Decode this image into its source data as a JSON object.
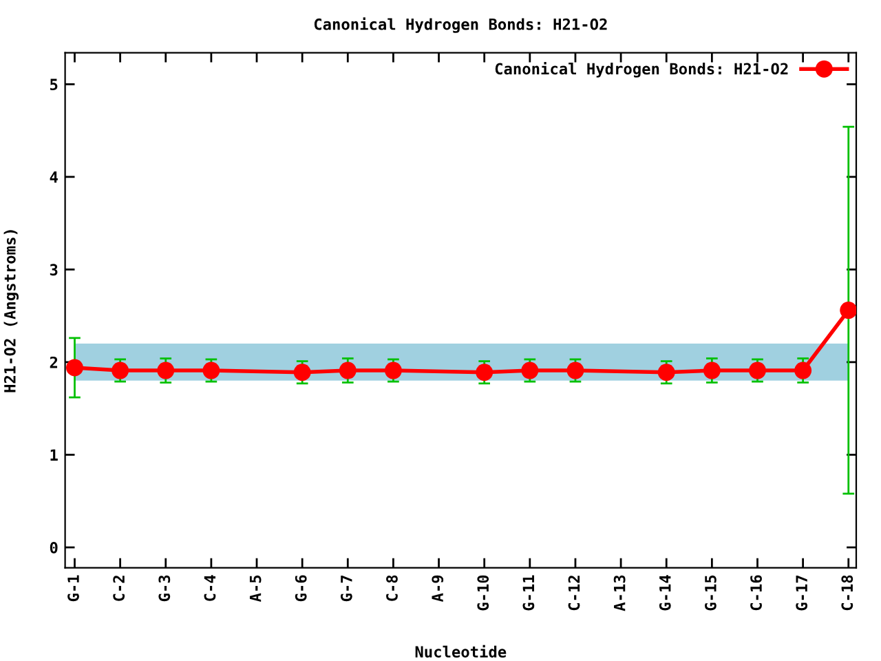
{
  "chart_data": {
    "type": "line",
    "title": "Canonical Hydrogen Bonds: H21-O2",
    "xlabel": "Nucleotide",
    "ylabel": "H21-O2 (Angstroms)",
    "categories": [
      "G-1",
      "C-2",
      "G-3",
      "C-4",
      "A-5",
      "G-6",
      "G-7",
      "C-8",
      "A-9",
      "G-10",
      "G-11",
      "C-12",
      "A-13",
      "G-14",
      "G-15",
      "C-16",
      "G-17",
      "C-18"
    ],
    "series": [
      {
        "name": "Canonical Hydrogen Bonds: H21-O2",
        "color": "#ff0000",
        "values": [
          1.94,
          1.91,
          1.91,
          1.91,
          null,
          1.89,
          1.91,
          1.91,
          null,
          1.89,
          1.91,
          1.91,
          null,
          1.89,
          1.91,
          1.91,
          1.91,
          2.56
        ],
        "errors": [
          0.32,
          0.12,
          0.13,
          0.12,
          null,
          0.12,
          0.13,
          0.12,
          null,
          0.12,
          0.12,
          0.12,
          null,
          0.12,
          0.13,
          0.12,
          0.13,
          1.98
        ]
      }
    ],
    "ylim": [
      -0.22,
      5.34
    ],
    "yticks": [
      0,
      1,
      2,
      3,
      4,
      5
    ],
    "bands": [
      {
        "axis": "y",
        "from": 1.8,
        "to": 2.2,
        "color": "#a0d0e0"
      }
    ],
    "legend": "top right",
    "marker": "circle",
    "line_style": "solid"
  }
}
